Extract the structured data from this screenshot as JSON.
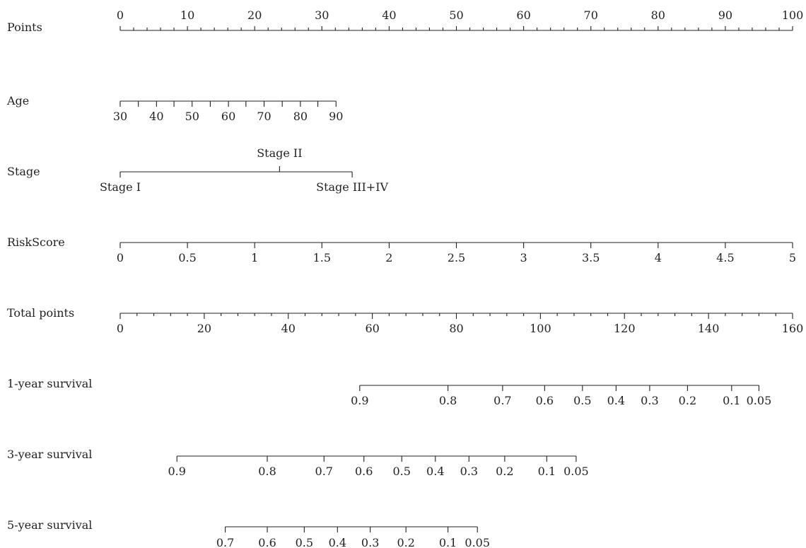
{
  "chart_data": {
    "type": "nomogram",
    "rows": [
      {
        "key": "points",
        "label": "Points",
        "ticks": [
          {
            "value": 0,
            "label": "0"
          },
          {
            "value": 10,
            "label": "10"
          },
          {
            "value": 20,
            "label": "20"
          },
          {
            "value": 30,
            "label": "30"
          },
          {
            "value": 40,
            "label": "40"
          },
          {
            "value": 50,
            "label": "50"
          },
          {
            "value": 60,
            "label": "60"
          },
          {
            "value": 70,
            "label": "70"
          },
          {
            "value": 80,
            "label": "80"
          },
          {
            "value": 90,
            "label": "90"
          },
          {
            "value": 100,
            "label": "100"
          }
        ],
        "minor_step": 2
      },
      {
        "key": "age",
        "label": "Age",
        "ticks": [
          {
            "value": 30,
            "label": "30",
            "points": 0
          },
          {
            "value": 35,
            "label": "",
            "points": 2.7
          },
          {
            "value": 40,
            "label": "40",
            "points": 5.4
          },
          {
            "value": 45,
            "label": "",
            "points": 8.0
          },
          {
            "value": 50,
            "label": "50",
            "points": 10.7
          },
          {
            "value": 55,
            "label": "",
            "points": 13.4
          },
          {
            "value": 60,
            "label": "60",
            "points": 16.1
          },
          {
            "value": 65,
            "label": "",
            "points": 18.7
          },
          {
            "value": 70,
            "label": "70",
            "points": 21.4
          },
          {
            "value": 75,
            "label": "",
            "points": 24.1
          },
          {
            "value": 80,
            "label": "80",
            "points": 26.8
          },
          {
            "value": 85,
            "label": "",
            "points": 29.4
          },
          {
            "value": 90,
            "label": "90",
            "points": 32.1
          }
        ]
      },
      {
        "key": "stage",
        "label": "Stage",
        "ticks": [
          {
            "value": "Stage I",
            "label": "Stage I",
            "points": 0
          },
          {
            "value": "Stage II",
            "label": "Stage II",
            "points": 23.7
          },
          {
            "value": "Stage III+IV",
            "label": "Stage III+IV",
            "points": 34.5
          }
        ]
      },
      {
        "key": "riskscore",
        "label": "RiskScore",
        "ticks": [
          {
            "value": 0,
            "label": "0",
            "points": 0
          },
          {
            "value": 0.5,
            "label": "0.5",
            "points": 10
          },
          {
            "value": 1,
            "label": "1",
            "points": 20
          },
          {
            "value": 1.5,
            "label": "1.5",
            "points": 30
          },
          {
            "value": 2,
            "label": "2",
            "points": 40
          },
          {
            "value": 2.5,
            "label": "2.5",
            "points": 50
          },
          {
            "value": 3,
            "label": "3",
            "points": 60
          },
          {
            "value": 3.5,
            "label": "3.5",
            "points": 70
          },
          {
            "value": 4,
            "label": "4",
            "points": 80
          },
          {
            "value": 4.5,
            "label": "4.5",
            "points": 90
          },
          {
            "value": 5,
            "label": "5",
            "points": 100
          }
        ]
      },
      {
        "key": "total",
        "label": "Total points",
        "ticks": [
          {
            "value": 0,
            "label": "0"
          },
          {
            "value": 20,
            "label": "20"
          },
          {
            "value": 40,
            "label": "40"
          },
          {
            "value": 60,
            "label": "60"
          },
          {
            "value": 80,
            "label": "80"
          },
          {
            "value": 100,
            "label": "100"
          },
          {
            "value": 120,
            "label": "120"
          },
          {
            "value": 140,
            "label": "140"
          },
          {
            "value": 160,
            "label": "160"
          }
        ],
        "minor_step": 4
      },
      {
        "key": "surv1",
        "label": "1-year survival",
        "ticks": [
          {
            "value": 0.9,
            "label": "0.9",
            "total_points": 57.0
          },
          {
            "value": 0.8,
            "label": "0.8",
            "total_points": 78.0
          },
          {
            "value": 0.7,
            "label": "0.7",
            "total_points": 91.0
          },
          {
            "value": 0.6,
            "label": "0.6",
            "total_points": 101.0
          },
          {
            "value": 0.5,
            "label": "0.5",
            "total_points": 110.0
          },
          {
            "value": 0.4,
            "label": "0.4",
            "total_points": 118.0
          },
          {
            "value": 0.3,
            "label": "0.3",
            "total_points": 126.0
          },
          {
            "value": 0.2,
            "label": "0.2",
            "total_points": 135.0
          },
          {
            "value": 0.1,
            "label": "0.1",
            "total_points": 145.5
          },
          {
            "value": 0.05,
            "label": "0.05",
            "total_points": 152.0
          }
        ]
      },
      {
        "key": "surv3",
        "label": "3-year survival",
        "ticks": [
          {
            "value": 0.9,
            "label": "0.9",
            "total_points": 13.5
          },
          {
            "value": 0.8,
            "label": "0.8",
            "total_points": 35.0
          },
          {
            "value": 0.7,
            "label": "0.7",
            "total_points": 48.5
          },
          {
            "value": 0.6,
            "label": "0.6",
            "total_points": 58.0
          },
          {
            "value": 0.5,
            "label": "0.5",
            "total_points": 67.0
          },
          {
            "value": 0.4,
            "label": "0.4",
            "total_points": 75.0
          },
          {
            "value": 0.3,
            "label": "0.3",
            "total_points": 83.0
          },
          {
            "value": 0.2,
            "label": "0.2",
            "total_points": 91.5
          },
          {
            "value": 0.1,
            "label": "0.1",
            "total_points": 101.5
          },
          {
            "value": 0.05,
            "label": "0.05",
            "total_points": 108.5
          }
        ]
      },
      {
        "key": "surv5",
        "label": "5-year survival",
        "ticks": [
          {
            "value": 0.7,
            "label": "0.7",
            "total_points": 25.0
          },
          {
            "value": 0.6,
            "label": "0.6",
            "total_points": 35.0
          },
          {
            "value": 0.5,
            "label": "0.5",
            "total_points": 43.8
          },
          {
            "value": 0.4,
            "label": "0.4",
            "total_points": 51.7
          },
          {
            "value": 0.3,
            "label": "0.3",
            "total_points": 59.5
          },
          {
            "value": 0.2,
            "label": "0.2",
            "total_points": 68.0
          },
          {
            "value": 0.1,
            "label": "0.1",
            "total_points": 78.0
          },
          {
            "value": 0.05,
            "label": "0.05",
            "total_points": 85.0
          }
        ]
      }
    ]
  }
}
